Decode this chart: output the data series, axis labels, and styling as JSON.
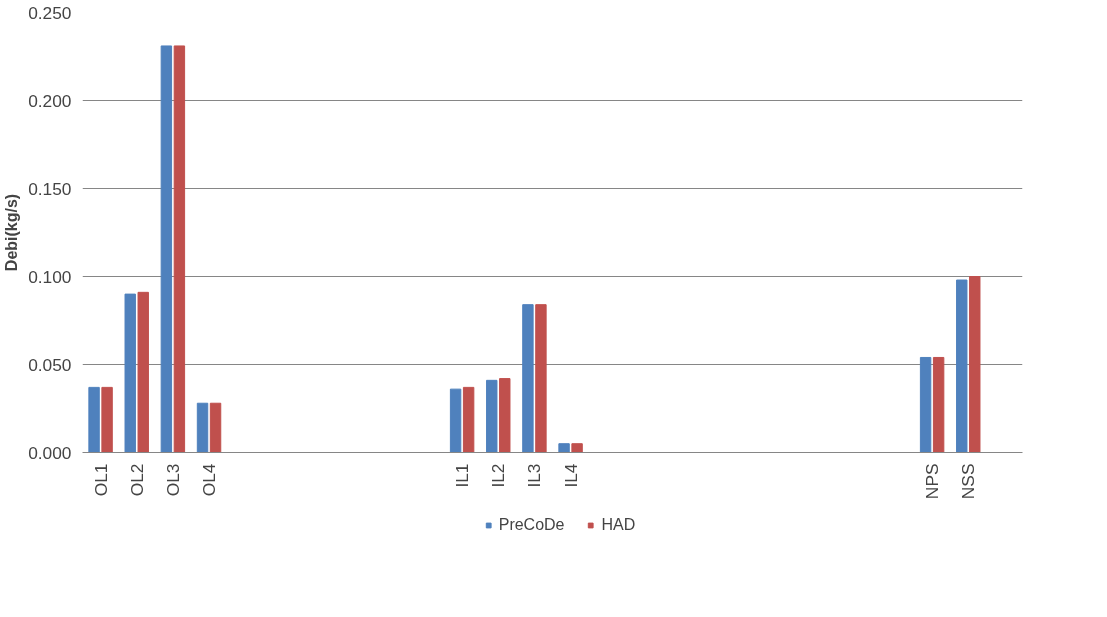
{
  "chart_data": {
    "type": "bar",
    "ylabel": "Debi(kg/s)",
    "categories": [
      "OL1",
      "OL2",
      "OL3",
      "OL4",
      null,
      null,
      null,
      null,
      null,
      null,
      "IL1",
      "IL2",
      "IL3",
      "IL4",
      null,
      null,
      null,
      null,
      null,
      null,
      null,
      null,
      null,
      "NPS",
      "NSS",
      null
    ],
    "series": [
      {
        "name": "PreCoDe",
        "color": "#4f81bd",
        "values": [
          0.037,
          0.09,
          0.231,
          0.028,
          null,
          null,
          null,
          null,
          null,
          null,
          0.036,
          0.041,
          0.084,
          0.005,
          null,
          null,
          null,
          null,
          null,
          null,
          null,
          null,
          null,
          0.054,
          0.098,
          null
        ]
      },
      {
        "name": "HAD",
        "color": "#c0504d",
        "values": [
          0.037,
          0.091,
          0.231,
          0.028,
          null,
          null,
          null,
          null,
          null,
          null,
          0.037,
          0.042,
          0.084,
          0.005,
          null,
          null,
          null,
          null,
          null,
          null,
          null,
          null,
          null,
          0.054,
          0.1,
          null
        ]
      }
    ],
    "ylim": [
      0,
      0.25
    ],
    "yticks": [
      {
        "value": 0,
        "label": "0.000"
      },
      {
        "value": 0.05,
        "label": "0.050"
      },
      {
        "value": 0.1,
        "label": "0.100"
      },
      {
        "value": 0.15,
        "label": "0.150"
      },
      {
        "value": 0.2,
        "label": "0.200"
      },
      {
        "value": 0.25,
        "label": "0.250"
      }
    ],
    "grid": "y",
    "legend": "bottom"
  }
}
